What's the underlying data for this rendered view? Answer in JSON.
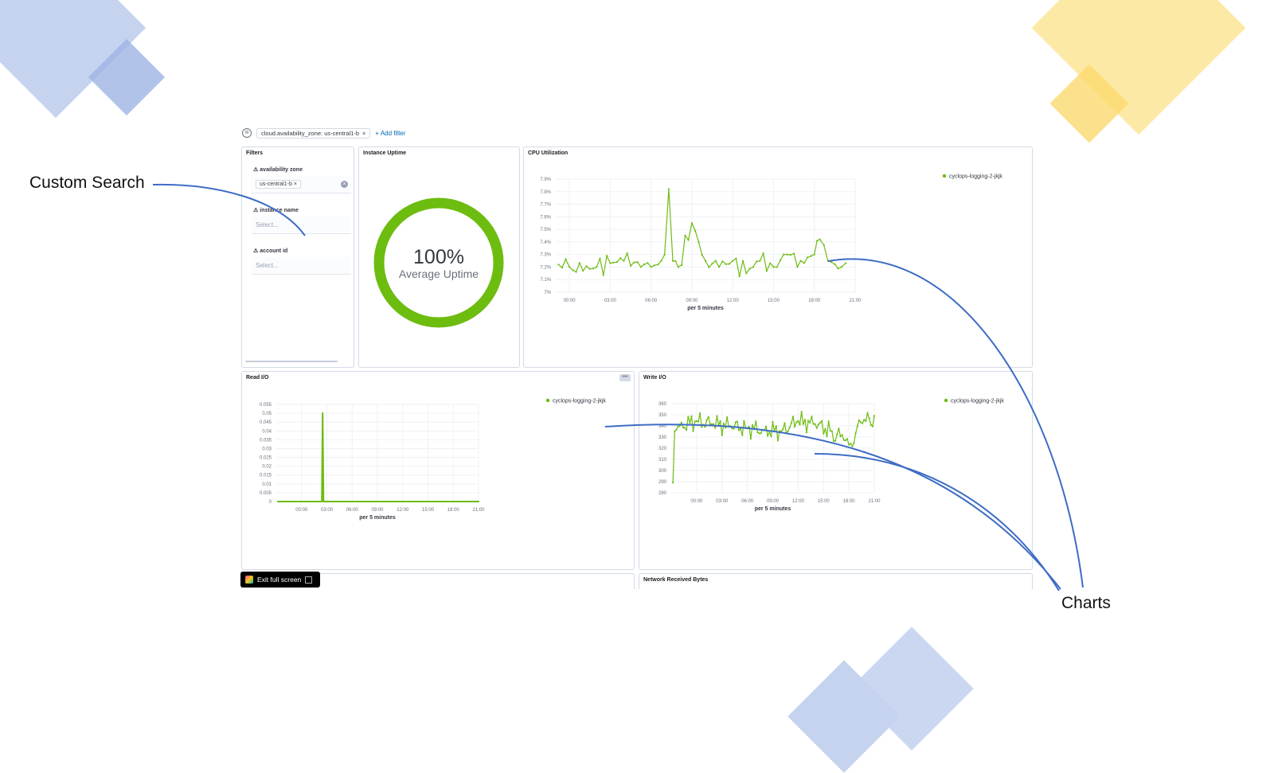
{
  "colors": {
    "series": "#6dbc10",
    "accent_blue": "#3d6cc5",
    "deco_blue": "#c5d3ef",
    "deco_blue_dark": "#9fb4e5",
    "deco_yellow": "#fde9a6",
    "deco_yellow_dark": "#fbd96f"
  },
  "callouts": {
    "custom_search": "Custom Search",
    "charts": "Charts"
  },
  "filter_bar": {
    "filter_pill": "cloud.availability_zone: us-central1-b",
    "pill_close": "×",
    "add_filter": "+ Add filter"
  },
  "filters_panel": {
    "title": "Filters",
    "controls": [
      {
        "label": "availability zone",
        "value": "us-central1-b",
        "placeholder": ""
      },
      {
        "label": "instance name",
        "value": "",
        "placeholder": "Select..."
      },
      {
        "label": "account id",
        "value": "",
        "placeholder": "Select..."
      }
    ]
  },
  "uptime_panel": {
    "title": "Instance Uptime",
    "value": "100%",
    "label": "Average Uptime",
    "percent": 100
  },
  "cpu_panel": {
    "title": "CPU Utilization"
  },
  "read_panel": {
    "title": "Read I/O"
  },
  "write_panel": {
    "title": "Write I/O"
  },
  "network_panel": {
    "title": "Network Received Bytes"
  },
  "exit_fullscreen": {
    "label": "Exit full screen"
  },
  "chart_data": [
    {
      "type": "line",
      "title": "CPU Utilization",
      "xlabel": "per 5 minutes",
      "x_ticks": [
        "00:00",
        "03:00",
        "06:00",
        "09:00",
        "12:00",
        "15:00",
        "18:00",
        "21:00"
      ],
      "y_ticks": [
        "7%",
        "7.1%",
        "7.2%",
        "7.3%",
        "7.4%",
        "7.5%",
        "7.6%",
        "7.7%",
        "7.8%",
        "7.9%"
      ],
      "ylim": [
        7.0,
        7.9
      ],
      "xlim": [
        -1,
        21
      ],
      "legend": "top-right",
      "series": [
        {
          "name": "cyclops-logging-2-jkjk",
          "x": [
            -0.8,
            0.0,
            1.0,
            2.0,
            3.0,
            4.0,
            5.0,
            6.0,
            6.5,
            7.0,
            7.3,
            7.6,
            8.0,
            9.0,
            10.0,
            11.0,
            12.0,
            13.0,
            14.0,
            15.0,
            16.0,
            17.0,
            18.0,
            18.4,
            19.0,
            20.0,
            20.3
          ],
          "values": [
            7.22,
            7.2,
            7.17,
            7.2,
            7.23,
            7.25,
            7.24,
            7.2,
            7.22,
            7.3,
            7.82,
            7.25,
            7.2,
            7.55,
            7.25,
            7.2,
            7.25,
            7.15,
            7.25,
            7.2,
            7.3,
            7.25,
            7.3,
            7.42,
            7.25,
            7.2,
            7.23
          ]
        }
      ]
    },
    {
      "type": "line",
      "title": "Read I/O",
      "xlabel": "per 5 minutes",
      "x_ticks": [
        "00:00",
        "03:00",
        "06:00",
        "09:00",
        "12:00",
        "15:00",
        "18:00",
        "21:00"
      ],
      "y_ticks": [
        "0",
        "0.005",
        "0.01",
        "0.015",
        "0.02",
        "0.025",
        "0.03",
        "0.035",
        "0.04",
        "0.045",
        "0.05",
        "0.055"
      ],
      "ylim": [
        0,
        0.055
      ],
      "xlim": [
        -3,
        21
      ],
      "legend": "top-right",
      "series": [
        {
          "name": "cyclops-logging-2-jkjk",
          "x": [
            -2.8,
            2.4,
            2.5,
            2.6,
            21.0
          ],
          "values": [
            0,
            0,
            0.05,
            0,
            0
          ]
        }
      ]
    },
    {
      "type": "line",
      "title": "Write I/O",
      "xlabel": "per 5 minutes",
      "x_ticks": [
        "00:00",
        "03:00",
        "06:00",
        "09:00",
        "12:00",
        "15:00",
        "18:00",
        "21:00"
      ],
      "y_ticks": [
        "280",
        "290",
        "300",
        "310",
        "320",
        "330",
        "340",
        "350",
        "360"
      ],
      "ylim": [
        275,
        362
      ],
      "xlim": [
        -3,
        21
      ],
      "legend": "top-right",
      "series": [
        {
          "name": "cyclops-logging-2-jkjk",
          "x": [
            -2.8,
            -2.6,
            -2.0,
            0.0,
            2.0,
            4.0,
            6.0,
            8.0,
            10.0,
            12.0,
            14.0,
            16.0,
            17.0,
            18.0,
            19.0,
            20.0,
            21.0
          ],
          "values": [
            285,
            335,
            340,
            345,
            342,
            340,
            338,
            336,
            335,
            345,
            342,
            335,
            330,
            322,
            340,
            345,
            350
          ]
        }
      ]
    }
  ]
}
